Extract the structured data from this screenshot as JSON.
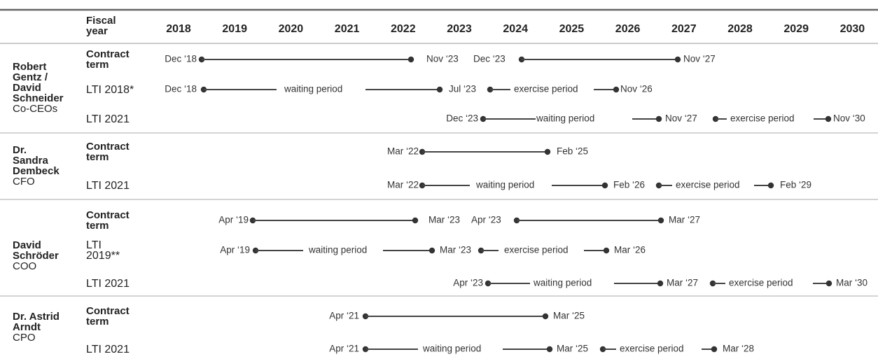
{
  "header": {
    "label": "Fiscal year",
    "years": [
      "2018",
      "2019",
      "2020",
      "2021",
      "2022",
      "2023",
      "2024",
      "2025",
      "2026",
      "2027",
      "2028",
      "2029",
      "2030"
    ]
  },
  "groups": [
    {
      "name": "Robert Gentz / David Schneider",
      "role": "Co-CEOs",
      "rows": [
        {
          "label": "Contract term",
          "timeline": [
            "Dec ‘18",
            "Nov ‘23",
            "Dec ‘23",
            "Nov ‘27"
          ]
        },
        {
          "label": "LTI 2018*",
          "timeline": [
            "Dec ‘18",
            "waiting period",
            "Jul ‘23",
            "exercise period",
            "Nov ‘26"
          ]
        },
        {
          "label": "LTI 2021",
          "timeline": [
            "Dec ‘23",
            "waiting period",
            "Nov ‘27",
            "exercise period",
            "Nov ‘30"
          ]
        }
      ]
    },
    {
      "name": "Dr. Sandra Dembeck",
      "role": "CFO",
      "rows": [
        {
          "label": "Contract term",
          "timeline": [
            "Mar ‘22",
            "Feb ‘25"
          ]
        },
        {
          "label": "LTI 2021",
          "timeline": [
            "Mar ‘22",
            "waiting period",
            "Feb ‘26",
            "exercise period",
            "Feb ‘29"
          ]
        }
      ]
    },
    {
      "name": "David Schröder",
      "role": "COO",
      "rows": [
        {
          "label": "Contract term",
          "timeline": [
            "Apr ‘19",
            "Mar ‘23",
            "Apr ‘23",
            "Mar ‘27"
          ]
        },
        {
          "label": "LTI 2019**",
          "timeline": [
            "Apr ‘19",
            "waiting period",
            "Mar ‘23",
            "exercise period",
            "Mar ‘26"
          ]
        },
        {
          "label": "LTI 2021",
          "timeline": [
            "Apr ‘23",
            "waiting period",
            "Mar ‘27",
            "exercise period",
            "Mar ‘30"
          ]
        }
      ]
    },
    {
      "name": "Dr. Astrid Arndt",
      "role": "CPO",
      "rows": [
        {
          "label": "Contract term",
          "timeline": [
            "Apr ‘21",
            "Mar ‘25"
          ]
        },
        {
          "label": "LTI 2021",
          "timeline": [
            "Apr ‘21",
            "waiting period",
            "Mar ‘25",
            "exercise period",
            "Mar ‘28"
          ]
        }
      ]
    }
  ]
}
